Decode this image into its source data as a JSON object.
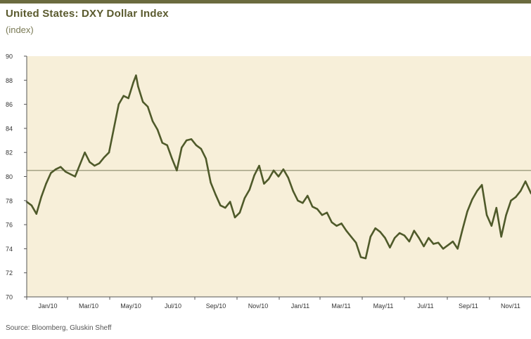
{
  "header": {
    "title": "United States: DXY Dollar Index",
    "subtitle": "(index)"
  },
  "footer": {
    "source": "Source: Bloomberg, Gluskin Sheff"
  },
  "colors": {
    "plot_background": "#f7efd9",
    "series_line": "#4f5a2a",
    "reference_line": "#7a7a5a",
    "axis": "#555555",
    "title": "#5a5a2e"
  },
  "chart_data": {
    "type": "line",
    "title": "United States: DXY Dollar Index",
    "subtitle": "(index)",
    "xlabel": "",
    "ylabel": "",
    "ylim": [
      70,
      90
    ],
    "yticks": [
      70,
      72,
      74,
      76,
      78,
      80,
      82,
      84,
      86,
      88,
      90
    ],
    "xlim": [
      "2010-01-01",
      "2011-12-31"
    ],
    "xtick_dates": [
      "2010-01-01",
      "2010-03-01",
      "2010-05-01",
      "2010-07-01",
      "2010-09-01",
      "2010-11-01",
      "2011-01-01",
      "2011-03-01",
      "2011-05-01",
      "2011-07-01",
      "2011-09-01",
      "2011-11-01"
    ],
    "xtick_labels": [
      "Jan/10",
      "Mar/10",
      "May/10",
      "Jul/10",
      "Sep/10",
      "Nov/10",
      "Jan/11",
      "Mar/11",
      "May/11",
      "Jul/11",
      "Sep/11",
      "Nov/11"
    ],
    "reference_line": 80.5,
    "grid": false,
    "legend": "none",
    "series": [
      {
        "x": [
          "2010-01-01",
          "2010-01-08",
          "2010-01-15",
          "2010-01-22",
          "2010-01-29",
          "2010-02-05",
          "2010-02-12",
          "2010-02-19",
          "2010-02-26",
          "2010-03-05",
          "2010-03-12",
          "2010-03-19",
          "2010-03-26",
          "2010-04-02",
          "2010-04-09",
          "2010-04-16",
          "2010-04-23",
          "2010-04-30",
          "2010-05-07",
          "2010-05-14",
          "2010-05-21",
          "2010-05-28",
          "2010-06-04",
          "2010-06-08",
          "2010-06-11",
          "2010-06-18",
          "2010-06-25",
          "2010-07-02",
          "2010-07-09",
          "2010-07-16",
          "2010-07-23",
          "2010-07-30",
          "2010-08-06",
          "2010-08-13",
          "2010-08-20",
          "2010-08-27",
          "2010-09-03",
          "2010-09-10",
          "2010-09-17",
          "2010-09-24",
          "2010-10-01",
          "2010-10-08",
          "2010-10-15",
          "2010-10-22",
          "2010-10-29",
          "2010-11-05",
          "2010-11-12",
          "2010-11-19",
          "2010-11-26",
          "2010-12-03",
          "2010-12-10",
          "2010-12-17",
          "2010-12-24",
          "2010-12-31",
          "2011-01-07",
          "2011-01-14",
          "2011-01-21",
          "2011-01-28",
          "2011-02-04",
          "2011-02-11",
          "2011-02-18",
          "2011-02-25",
          "2011-03-04",
          "2011-03-11",
          "2011-03-18",
          "2011-03-25",
          "2011-04-01",
          "2011-04-08",
          "2011-04-15",
          "2011-04-22",
          "2011-04-29",
          "2011-05-06",
          "2011-05-13",
          "2011-05-20",
          "2011-05-27",
          "2011-06-03",
          "2011-06-10",
          "2011-06-17",
          "2011-06-24",
          "2011-07-01",
          "2011-07-08",
          "2011-07-15",
          "2011-07-22",
          "2011-07-29",
          "2011-08-05",
          "2011-08-12",
          "2011-08-19",
          "2011-08-26",
          "2011-09-02",
          "2011-09-09",
          "2011-09-16",
          "2011-09-23",
          "2011-09-30",
          "2011-10-07",
          "2011-10-14",
          "2011-10-21",
          "2011-10-28",
          "2011-11-04",
          "2011-11-11",
          "2011-11-18",
          "2011-11-25",
          "2011-12-02",
          "2011-12-09",
          "2011-12-16",
          "2011-12-23",
          "2011-12-31"
        ],
        "y": [
          77.9,
          77.6,
          76.9,
          78.3,
          79.4,
          80.3,
          80.6,
          80.8,
          80.4,
          80.2,
          80.0,
          81.0,
          82.0,
          81.2,
          80.9,
          81.1,
          81.6,
          82.0,
          84.0,
          86.0,
          86.7,
          86.5,
          87.8,
          88.4,
          87.5,
          86.2,
          85.8,
          84.6,
          83.9,
          82.8,
          82.6,
          81.5,
          80.5,
          82.4,
          83.0,
          83.1,
          82.6,
          82.3,
          81.5,
          79.5,
          78.5,
          77.6,
          77.4,
          77.9,
          76.6,
          77.0,
          78.2,
          78.9,
          80.1,
          80.9,
          79.4,
          79.8,
          80.5,
          80.0,
          80.6,
          79.9,
          78.8,
          78.0,
          77.8,
          78.4,
          77.5,
          77.3,
          76.8,
          77.0,
          76.2,
          75.9,
          76.1,
          75.5,
          75.0,
          74.5,
          73.3,
          73.2,
          75.0,
          75.7,
          75.4,
          74.9,
          74.1,
          74.9,
          75.3,
          75.1,
          74.6,
          75.5,
          74.9,
          74.2,
          74.9,
          74.4,
          74.5,
          74.0,
          74.3,
          74.6,
          74.0,
          75.6,
          77.1,
          78.1,
          78.8,
          79.3,
          76.8,
          75.9,
          77.4,
          75.0,
          76.8,
          78.0,
          78.3,
          78.8,
          79.6,
          78.6
        ]
      }
    ]
  }
}
